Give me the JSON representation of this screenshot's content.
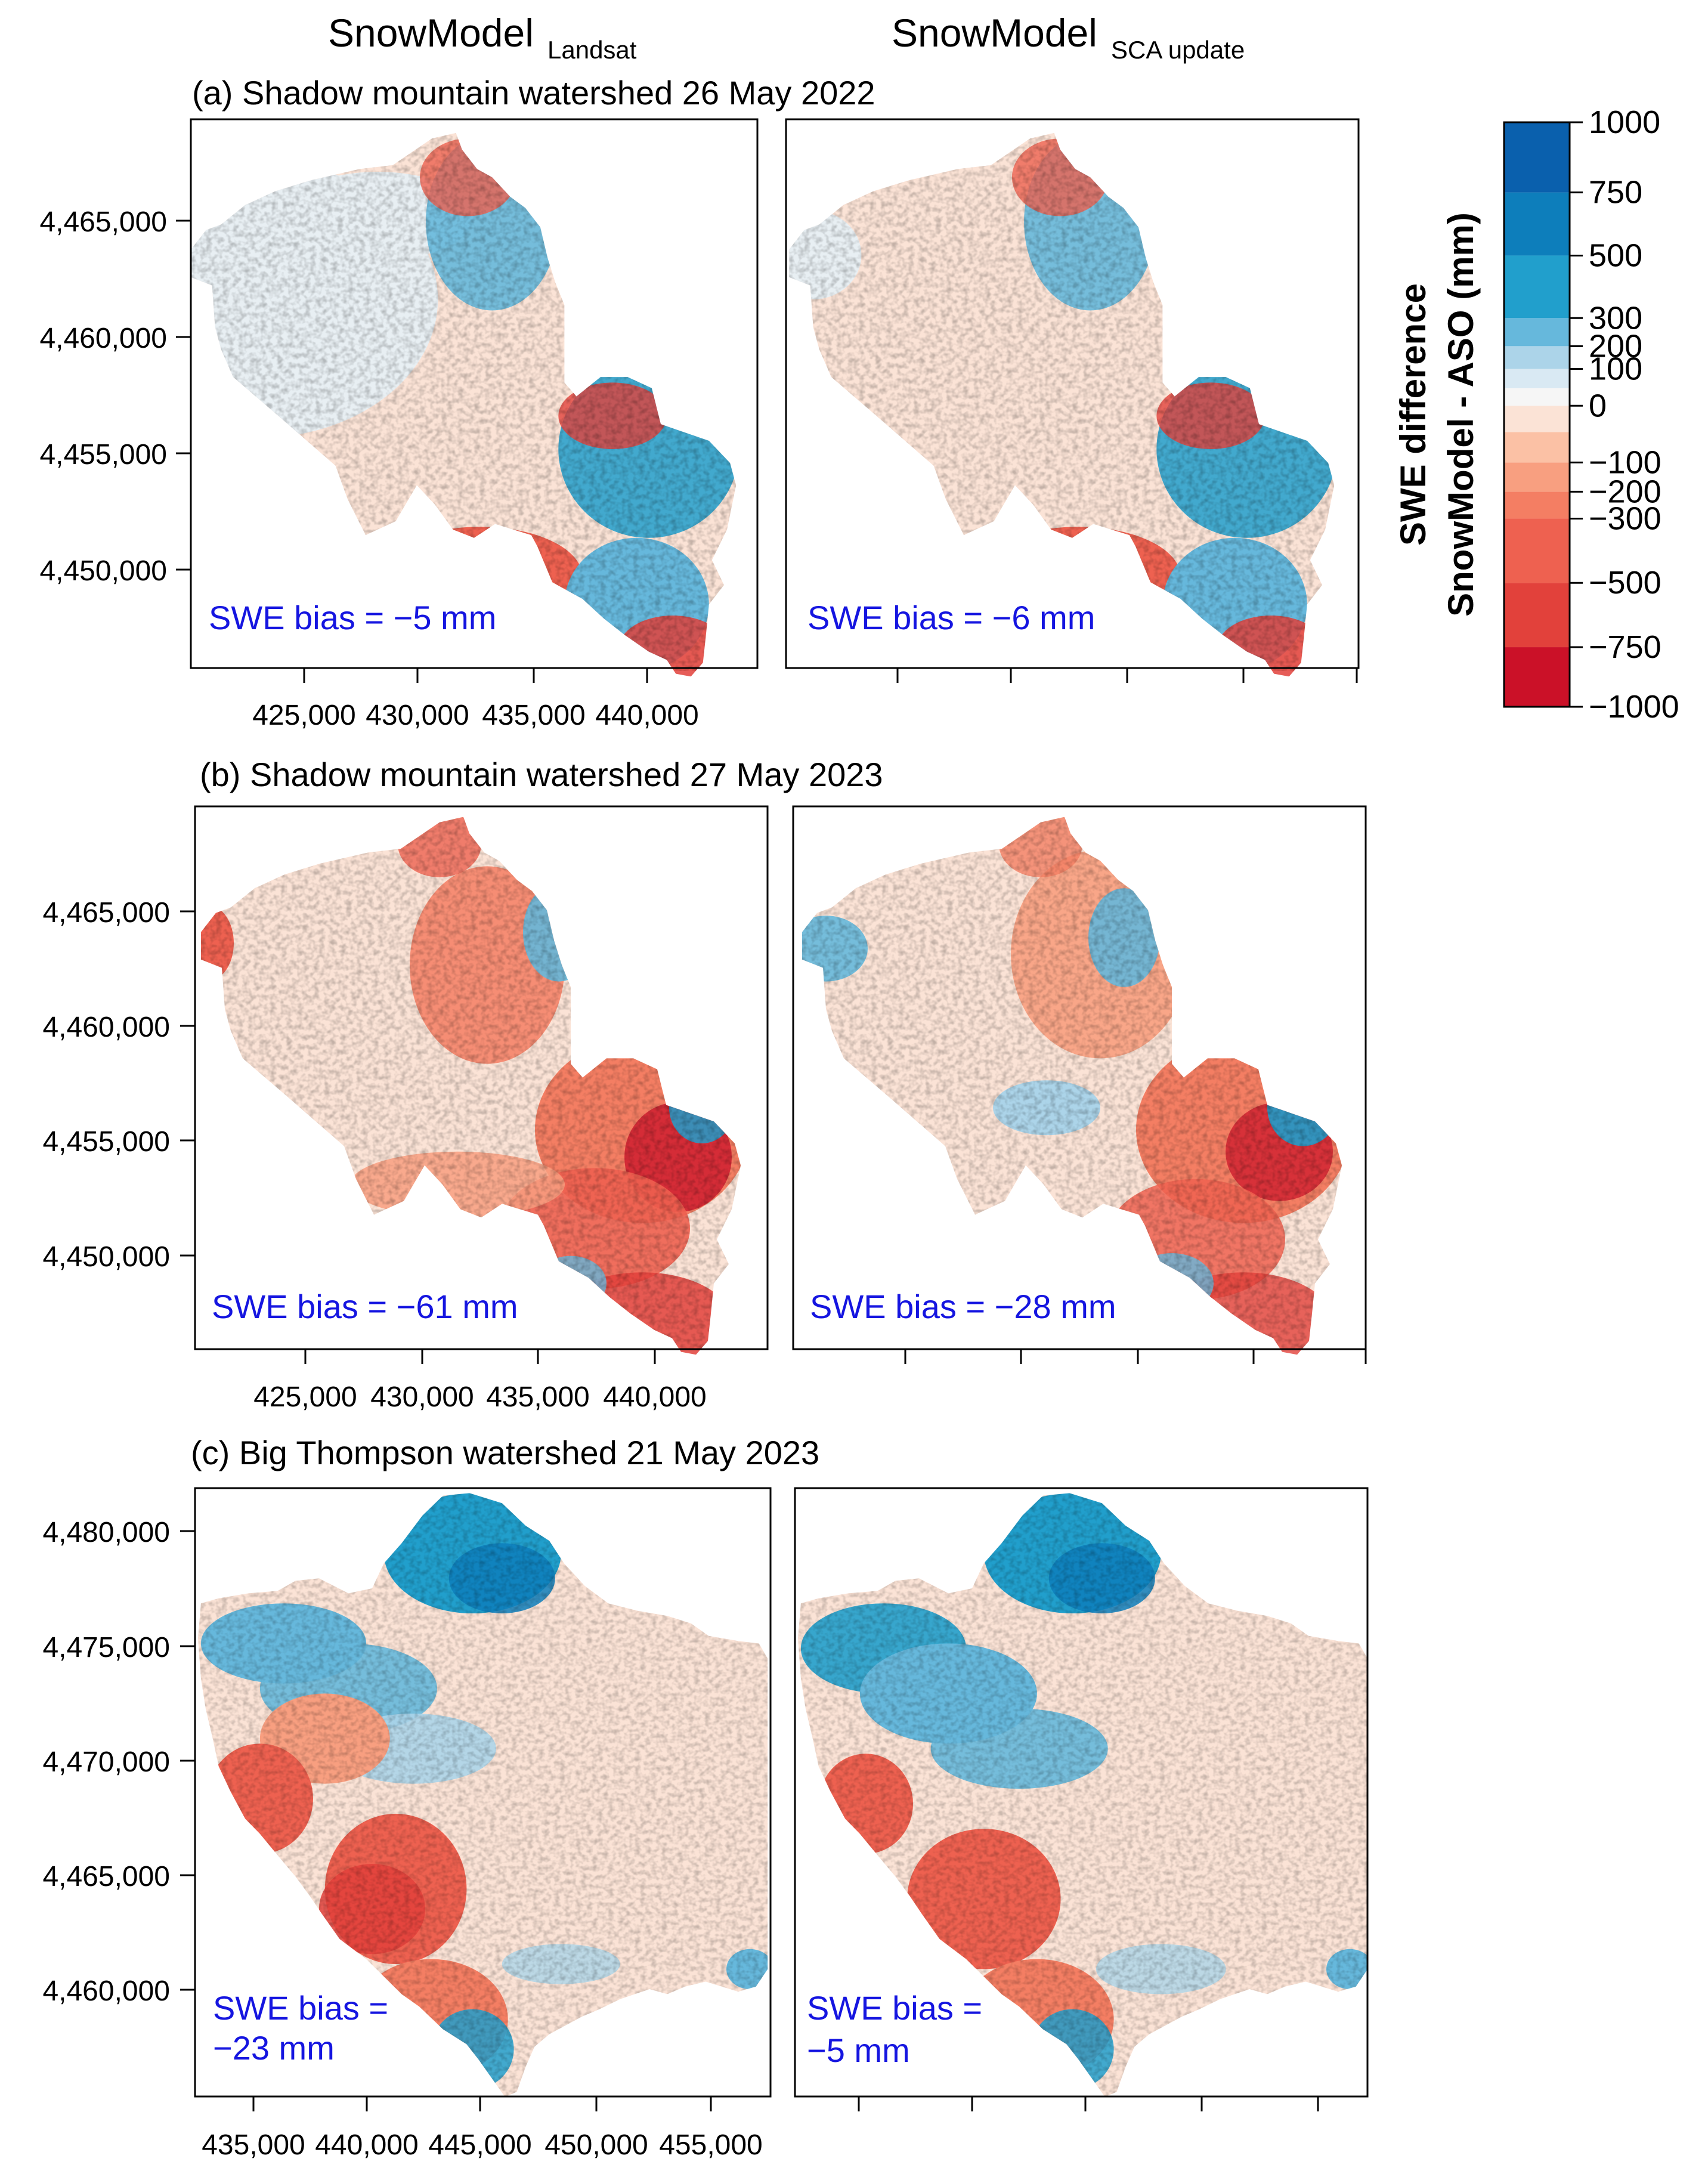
{
  "figure": {
    "column_headers": [
      {
        "main": "SnowModel",
        "sub": "Landsat"
      },
      {
        "main": "SnowModel",
        "sub": "SCA  update"
      }
    ]
  },
  "colorbar": {
    "title_line1": "SWE difference",
    "title_line2": "SnowModel - ASO (mm)",
    "tick_labels": [
      "1000",
      "750",
      "500",
      "300",
      "200",
      "100",
      "0",
      "−100",
      "−200",
      "−300",
      "−500",
      "−750",
      "−1000"
    ],
    "classes": [
      {
        "from": -1000,
        "to": -750,
        "color": "#cb1128"
      },
      {
        "from": -750,
        "to": -500,
        "color": "#e2413b"
      },
      {
        "from": -500,
        "to": -300,
        "color": "#ee6150"
      },
      {
        "from": -300,
        "to": -200,
        "color": "#f47e63"
      },
      {
        "from": -200,
        "to": -100,
        "color": "#f89f80"
      },
      {
        "from": -100,
        "to": -50,
        "color": "#fbc1a5"
      },
      {
        "from": -50,
        "to": 0,
        "color": "#fbe3d6"
      },
      {
        "from": 0,
        "to": 50,
        "color": "#f6f6f6"
      },
      {
        "from": 50,
        "to": 100,
        "color": "#d9e9f3"
      },
      {
        "from": 100,
        "to": 200,
        "color": "#acd4e9"
      },
      {
        "from": 200,
        "to": 300,
        "color": "#66b8dc"
      },
      {
        "from": 300,
        "to": 500,
        "color": "#219fcc"
      },
      {
        "from": 500,
        "to": 750,
        "color": "#0d7ebb"
      },
      {
        "from": 750,
        "to": 1000,
        "color": "#0a60ad"
      }
    ],
    "ticks": [
      1000,
      750,
      500,
      300,
      200,
      100,
      0,
      -100,
      -200,
      -300,
      -500,
      -750,
      -1000
    ]
  },
  "chart_data": [
    {
      "type": "heatmap",
      "title": "(a) Shadow mountain watershed 26 May 2022",
      "ylabels": [
        "4,465,000",
        "4,460,000",
        "4,455,000",
        "4,450,000"
      ],
      "xlabels": [
        "425,000",
        "430,000",
        "435,000",
        "440,000"
      ],
      "panels": [
        {
          "model": "SnowModel Landsat",
          "bias_label": "SWE bias = −5 mm",
          "bias_mm": -5
        },
        {
          "model": "SnowModel SCA update",
          "bias_label": "SWE bias = −6 mm",
          "bias_mm": -6
        }
      ]
    },
    {
      "type": "heatmap",
      "title": "(b) Shadow mountain watershed 27 May 2023",
      "ylabels": [
        "4,465,000",
        "4,460,000",
        "4,455,000",
        "4,450,000"
      ],
      "xlabels": [
        "425,000",
        "430,000",
        "435,000",
        "440,000"
      ],
      "panels": [
        {
          "model": "SnowModel Landsat",
          "bias_label": "SWE bias = −61 mm",
          "bias_mm": -61
        },
        {
          "model": "SnowModel SCA update",
          "bias_label": "SWE bias = −28 mm",
          "bias_mm": -28
        }
      ]
    },
    {
      "type": "heatmap",
      "title": "(c) Big Thompson watershed 21 May 2023",
      "ylabels": [
        "4,480,000",
        "4,475,000",
        "4,470,000",
        "4,465,000",
        "4,460,000"
      ],
      "xlabels": [
        "435,000",
        "440,000",
        "445,000",
        "450,000",
        "455,000"
      ],
      "panels": [
        {
          "model": "SnowModel Landsat",
          "bias_label_lines": [
            "SWE bias =",
            "−23 mm"
          ],
          "bias_mm": -23
        },
        {
          "model": "SnowModel SCA update",
          "bias_label_lines": [
            "SWE bias =",
            "−5 mm"
          ],
          "bias_mm": -5
        }
      ]
    }
  ]
}
